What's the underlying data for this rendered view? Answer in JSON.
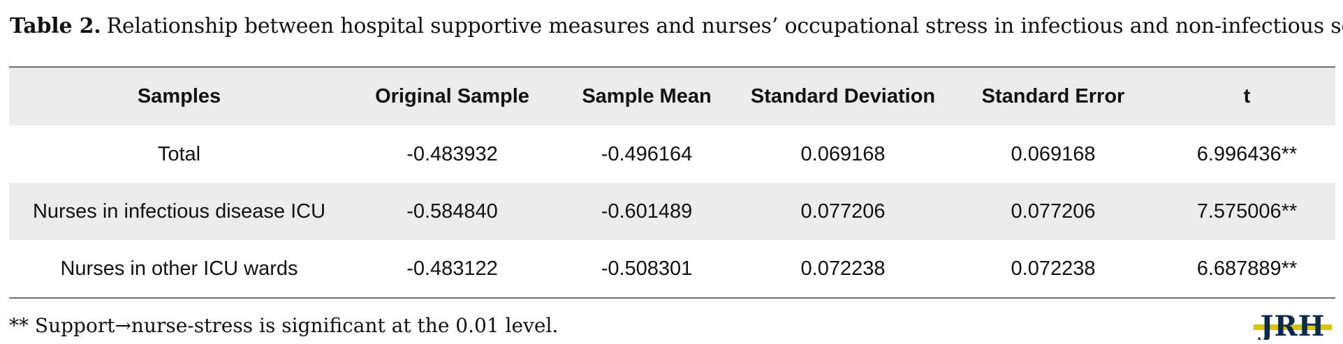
{
  "caption": {
    "label": "Table 2.",
    "text": "Relationship between hospital supportive measures and nurses’ occupational stress in infectious and non-infectious sectors"
  },
  "table": {
    "headers": [
      "Samples",
      "Original Sample",
      "Sample Mean",
      "Standard Deviation",
      "Standard Error",
      "t"
    ],
    "rows": [
      [
        "Total",
        "-0.483932",
        "-0.496164",
        "0.069168",
        "0.069168",
        "6.996436**"
      ],
      [
        "Nurses in infectious disease ICU",
        "-0.584840",
        "-0.601489",
        "0.077206",
        "0.077206",
        "7.575006**"
      ],
      [
        "Nurses in other ICU wards",
        "-0.483122",
        "-0.508301",
        "0.072238",
        "0.072238",
        "6.687889**"
      ]
    ]
  },
  "footnote": "** Support→nurse-stress is significant at the 0.01 level.",
  "logo": {
    "text": "JRH",
    "colors": {
      "text": "#0d2a4a",
      "accent": "#d9c400"
    }
  },
  "colors": {
    "header_bg": "#ebebeb",
    "rule": "#6e6e6e"
  }
}
